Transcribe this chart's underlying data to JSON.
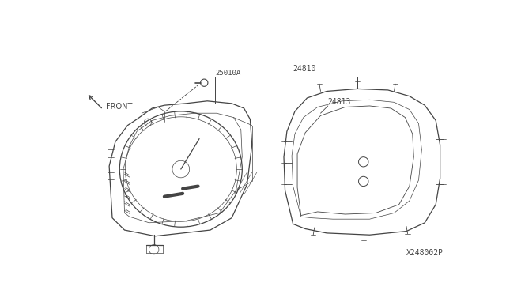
{
  "bg_color": "#ffffff",
  "line_color": "#444444",
  "text_color": "#444444",
  "fig_width": 6.4,
  "fig_height": 3.72,
  "dpi": 100,
  "part_number_bottom": "X248002P"
}
